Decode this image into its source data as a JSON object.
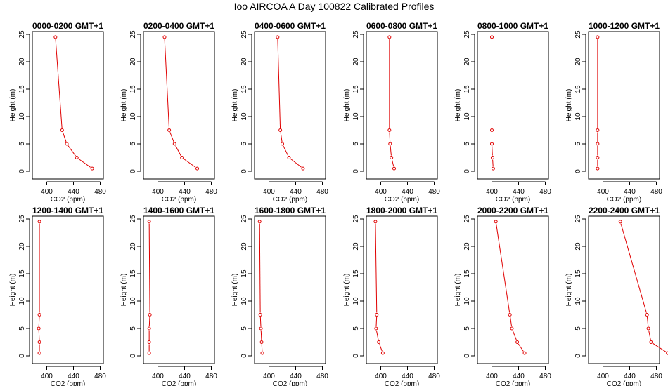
{
  "figure": {
    "title": "Ioo AIRCOA A  Day 100822  Calibrated Profiles"
  },
  "colors": {
    "series": "#e00000",
    "axis": "#000000"
  },
  "chart_data": [
    {
      "type": "line",
      "title": "0000-0200 GMT+1",
      "xlabel": "CO2 (ppm)",
      "ylabel": "Height (m)",
      "xlim": [
        385,
        500
      ],
      "ylim": [
        0,
        25
      ],
      "xticks": [
        400,
        440,
        480
      ],
      "yticks": [
        0,
        5,
        10,
        15,
        20,
        25
      ],
      "grid": false,
      "x": [
        468,
        445,
        430,
        423,
        413
      ],
      "y": [
        0.5,
        2.5,
        5,
        7.5,
        24.5
      ]
    },
    {
      "type": "line",
      "title": "0200-0400 GMT+1",
      "xlabel": "CO2 (ppm)",
      "ylabel": "Height (m)",
      "xlim": [
        385,
        500
      ],
      "ylim": [
        0,
        25
      ],
      "xticks": [
        400,
        440,
        480
      ],
      "yticks": [
        0,
        5,
        10,
        15,
        20,
        25
      ],
      "grid": false,
      "x": [
        459,
        436,
        425,
        417,
        410
      ],
      "y": [
        0.5,
        2.5,
        5,
        7.5,
        24.5
      ]
    },
    {
      "type": "line",
      "title": "0400-0600 GMT+1",
      "xlabel": "CO2 (ppm)",
      "ylabel": "Height (m)",
      "xlim": [
        385,
        500
      ],
      "ylim": [
        0,
        25
      ],
      "xticks": [
        400,
        440,
        480
      ],
      "yticks": [
        0,
        5,
        10,
        15,
        20,
        25
      ],
      "grid": false,
      "x": [
        451,
        430,
        420,
        417,
        413
      ],
      "y": [
        0.5,
        2.5,
        5,
        7.5,
        24.5
      ]
    },
    {
      "type": "line",
      "title": "0600-0800 GMT+1",
      "xlabel": "CO2 (ppm)",
      "ylabel": "Height (m)",
      "xlim": [
        385,
        500
      ],
      "ylim": [
        0,
        25
      ],
      "xticks": [
        400,
        440,
        480
      ],
      "yticks": [
        0,
        5,
        10,
        15,
        20,
        25
      ],
      "grid": false,
      "x": [
        420,
        416,
        414,
        413,
        413
      ],
      "y": [
        0.5,
        2.5,
        5,
        7.5,
        24.5
      ]
    },
    {
      "type": "line",
      "title": "0800-1000 GMT+1",
      "xlabel": "CO2 (ppm)",
      "ylabel": "Height (m)",
      "xlim": [
        385,
        500
      ],
      "ylim": [
        0,
        25
      ],
      "xticks": [
        400,
        440,
        480
      ],
      "yticks": [
        0,
        5,
        10,
        15,
        20,
        25
      ],
      "grid": false,
      "x": [
        402,
        401,
        400,
        400,
        400
      ],
      "y": [
        0.5,
        2.5,
        5,
        7.5,
        24.5
      ]
    },
    {
      "type": "line",
      "title": "1000-1200 GMT+1",
      "xlabel": "CO2 (ppm)",
      "ylabel": "Height (m)",
      "xlim": [
        385,
        500
      ],
      "ylim": [
        0,
        25
      ],
      "xticks": [
        400,
        440,
        480
      ],
      "yticks": [
        0,
        5,
        10,
        15,
        20,
        25
      ],
      "grid": false,
      "x": [
        392,
        392,
        392,
        392,
        392
      ],
      "y": [
        0.5,
        2.5,
        5,
        7.5,
        24.5
      ]
    },
    {
      "type": "line",
      "title": "1200-1400 GMT+1",
      "xlabel": "CO2 (ppm)",
      "ylabel": "Height (m)",
      "xlim": [
        385,
        500
      ],
      "ylim": [
        0,
        25
      ],
      "xticks": [
        400,
        440,
        480
      ],
      "yticks": [
        0,
        5,
        10,
        15,
        20,
        25
      ],
      "grid": false,
      "x": [
        389,
        389,
        388,
        389,
        389
      ],
      "y": [
        0.5,
        2.5,
        5,
        7.5,
        24.5
      ]
    },
    {
      "type": "line",
      "title": "1400-1600 GMT+1",
      "xlabel": "CO2 (ppm)",
      "ylabel": "Height (m)",
      "xlim": [
        385,
        500
      ],
      "ylim": [
        0,
        25
      ],
      "xticks": [
        400,
        440,
        480
      ],
      "yticks": [
        0,
        5,
        10,
        15,
        20,
        25
      ],
      "grid": false,
      "x": [
        387,
        387,
        387,
        388,
        387
      ],
      "y": [
        0.5,
        2.5,
        5,
        7.5,
        24.5
      ]
    },
    {
      "type": "line",
      "title": "1600-1800 GMT+1",
      "xlabel": "CO2 (ppm)",
      "ylabel": "Height (m)",
      "xlim": [
        385,
        500
      ],
      "ylim": [
        0,
        25
      ],
      "xticks": [
        400,
        440,
        480
      ],
      "yticks": [
        0,
        5,
        10,
        15,
        20,
        25
      ],
      "grid": false,
      "x": [
        390,
        389,
        388,
        387,
        386
      ],
      "y": [
        0.5,
        2.5,
        5,
        7.5,
        24.5
      ]
    },
    {
      "type": "line",
      "title": "1800-2000 GMT+1",
      "xlabel": "CO2 (ppm)",
      "ylabel": "Height (m)",
      "xlim": [
        385,
        500
      ],
      "ylim": [
        0,
        25
      ],
      "xticks": [
        400,
        440,
        480
      ],
      "yticks": [
        0,
        5,
        10,
        15,
        20,
        25
      ],
      "grid": false,
      "x": [
        403,
        397,
        393,
        394,
        392
      ],
      "y": [
        0.5,
        2.5,
        5,
        7.5,
        24.5
      ]
    },
    {
      "type": "line",
      "title": "2000-2200 GMT+1",
      "xlabel": "CO2 (ppm)",
      "ylabel": "Height (m)",
      "xlim": [
        385,
        500
      ],
      "ylim": [
        0,
        25
      ],
      "xticks": [
        400,
        440,
        480
      ],
      "yticks": [
        0,
        5,
        10,
        15,
        20,
        25
      ],
      "grid": false,
      "x": [
        449,
        438,
        430,
        427,
        406
      ],
      "y": [
        0.5,
        2.5,
        5,
        7.5,
        24.5
      ]
    },
    {
      "type": "line",
      "title": "2200-2400 GMT+1",
      "xlabel": "CO2 (ppm)",
      "ylabel": "Height (m)",
      "xlim": [
        385,
        500
      ],
      "ylim": [
        0,
        25
      ],
      "xticks": [
        400,
        440,
        480
      ],
      "yticks": [
        0,
        5,
        10,
        15,
        20,
        25
      ],
      "grid": false,
      "x": [
        497,
        472,
        468,
        466,
        426
      ],
      "y": [
        0.5,
        2.5,
        5,
        7.5,
        24.5
      ]
    }
  ]
}
